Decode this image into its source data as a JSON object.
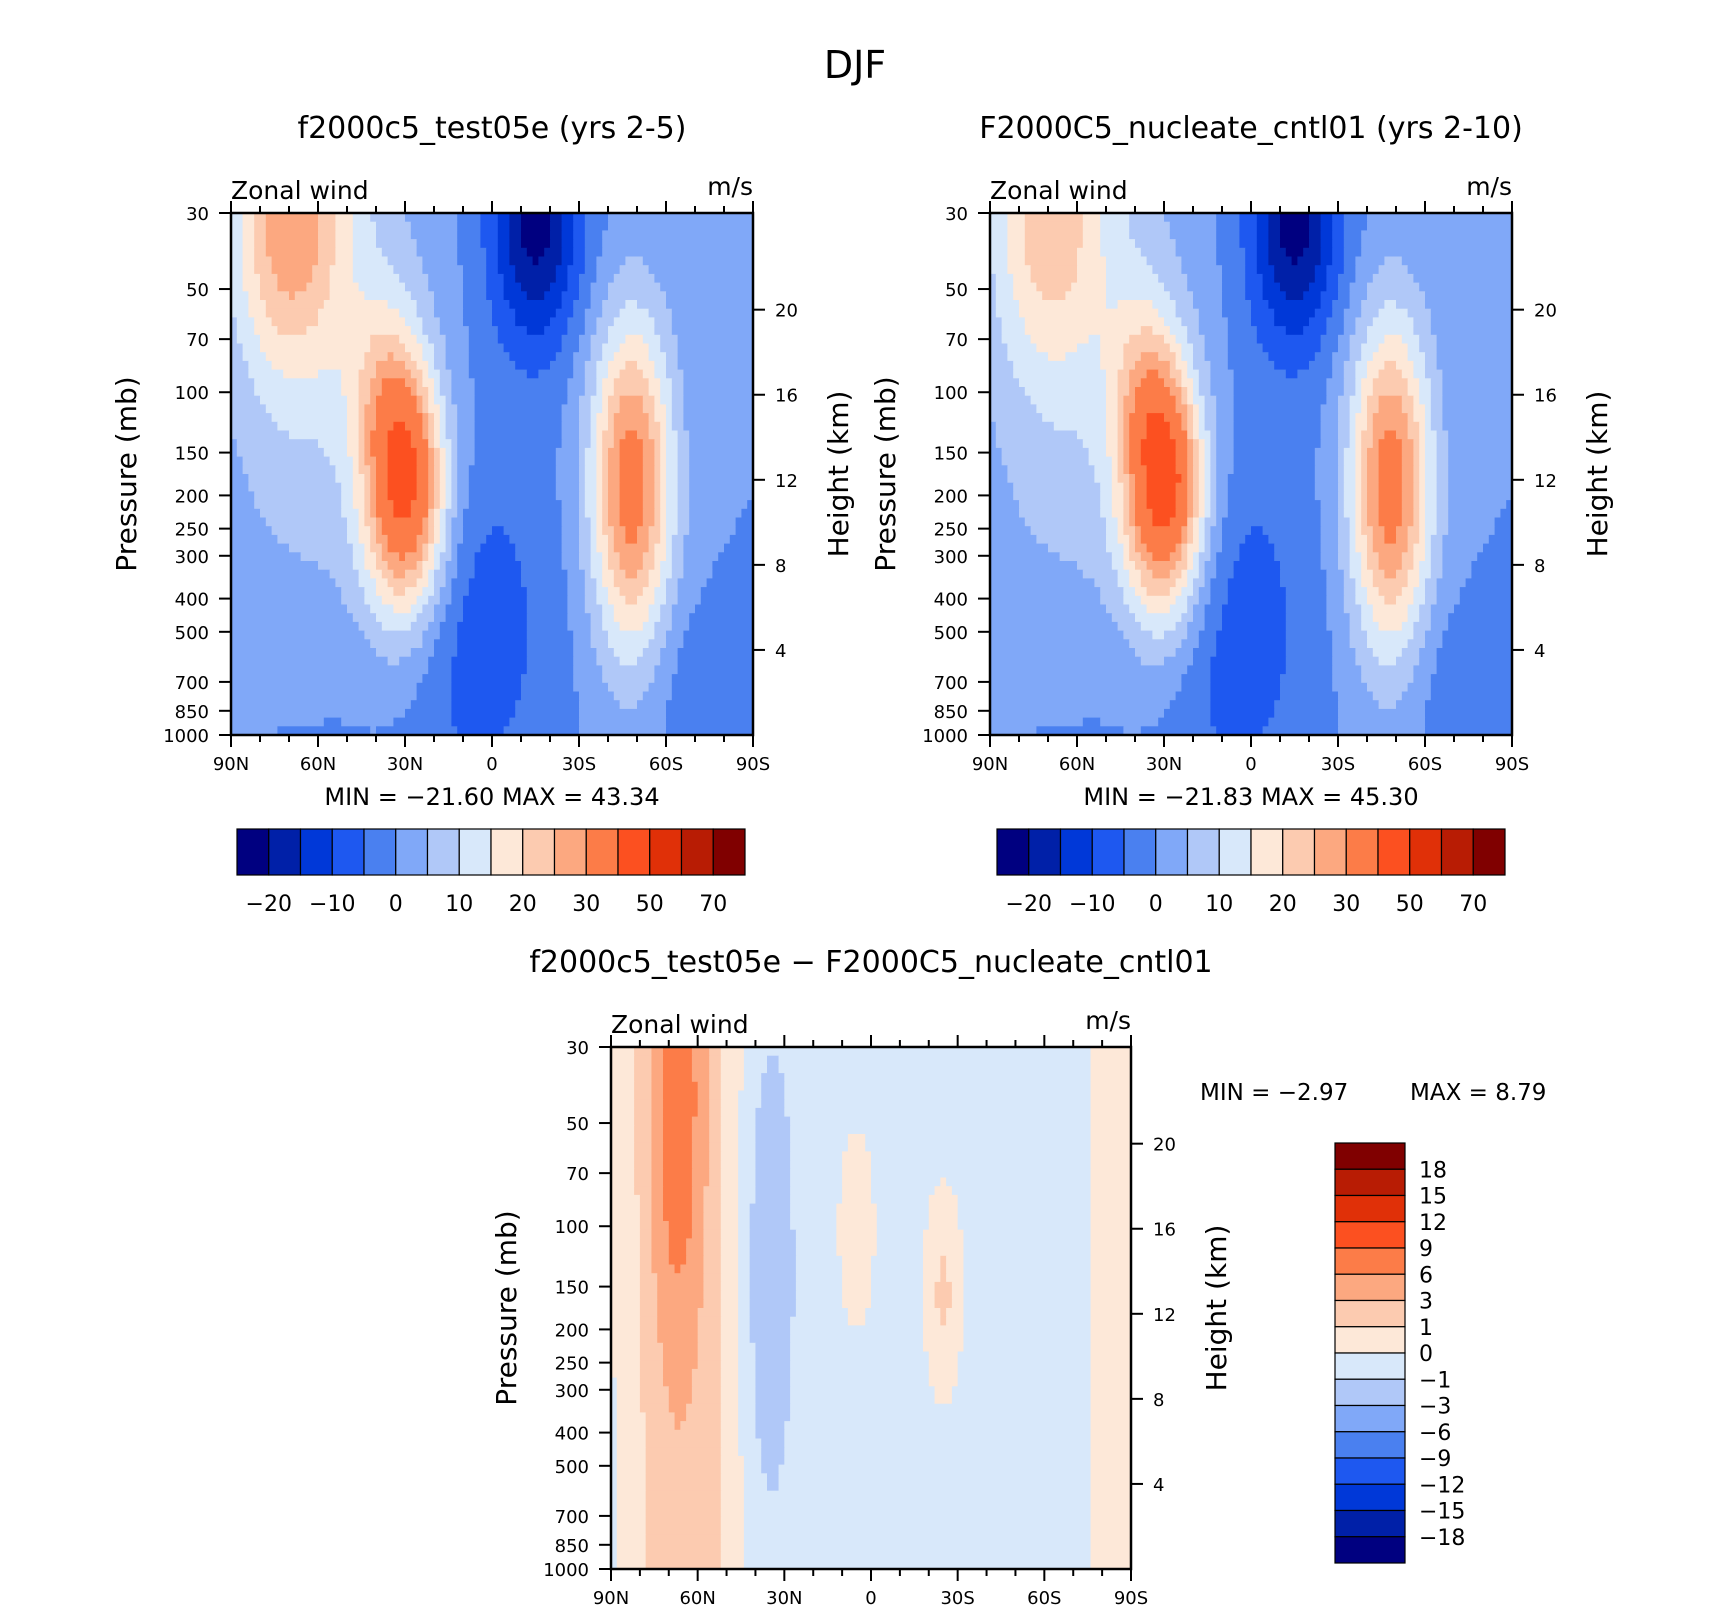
{
  "suptitle": "DJF",
  "colors": {
    "abs": [
      "#000080",
      "#0020a8",
      "#0038d8",
      "#1e58f0",
      "#4a80f0",
      "#80a8f8",
      "#b0c8f8",
      "#d8e8fa",
      "#fde8d8",
      "#fccbb0",
      "#fca880",
      "#fc7c48",
      "#fc5020",
      "#e03008",
      "#b81c04",
      "#800000"
    ],
    "diff": [
      "#000080",
      "#0020a8",
      "#0038d8",
      "#1e58f0",
      "#4a80f0",
      "#80a8f8",
      "#b0c8f8",
      "#d8e8fa",
      "#fde8d8",
      "#fccbb0",
      "#fca880",
      "#fc7c48",
      "#fc5020",
      "#e03008",
      "#b81c04",
      "#800000"
    ]
  },
  "chart_data": [
    {
      "type": "heatmap",
      "title": "f2000c5_test05e (yrs 2-5)",
      "left_label": "Zonal wind",
      "right_label": "m/s",
      "ylabel": "Pressure (mb)",
      "ylabel2": "Height (km)",
      "x_ticks": [
        "90N",
        "60N",
        "30N",
        "0",
        "30S",
        "60S",
        "90S"
      ],
      "y_ticks": [
        30,
        50,
        70,
        100,
        150,
        200,
        250,
        300,
        400,
        500,
        700,
        850,
        1000
      ],
      "y2_ticks": [
        4,
        8,
        12,
        16,
        20
      ],
      "stats": "MIN = −21.60   MAX =   43.34",
      "colorbar_labels": [
        "−20",
        "−10",
        "0",
        "10",
        "20",
        "30",
        "50",
        "70"
      ],
      "jets": {
        "nh_lat": 30,
        "nh_max": 43,
        "sh_lat": -48,
        "sh_max": 34
      }
    },
    {
      "type": "heatmap",
      "title": "F2000C5_nucleate_cntl01 (yrs 2-10)",
      "left_label": "Zonal wind",
      "right_label": "m/s",
      "ylabel": "Pressure (mb)",
      "ylabel2": "Height (km)",
      "x_ticks": [
        "90N",
        "60N",
        "30N",
        "0",
        "30S",
        "60S",
        "90S"
      ],
      "y_ticks": [
        30,
        50,
        70,
        100,
        150,
        200,
        250,
        300,
        400,
        500,
        700,
        850,
        1000
      ],
      "y2_ticks": [
        4,
        8,
        12,
        16,
        20
      ],
      "stats": "MIN = −21.83   MAX =   45.30",
      "colorbar_labels": [
        "−20",
        "−10",
        "0",
        "10",
        "20",
        "30",
        "50",
        "70"
      ],
      "jets": {
        "nh_lat": 30,
        "nh_max": 45,
        "sh_lat": -48,
        "sh_max": 34
      }
    },
    {
      "type": "heatmap",
      "title": "f2000c5_test05e − F2000C5_nucleate_cntl01",
      "left_label": "Zonal wind",
      "right_label": "m/s",
      "ylabel": "Pressure (mb)",
      "ylabel2": "Height (km)",
      "x_ticks": [
        "90N",
        "60N",
        "30N",
        "0",
        "30S",
        "60S",
        "90S"
      ],
      "y_ticks": [
        30,
        50,
        70,
        100,
        150,
        200,
        250,
        300,
        400,
        500,
        700,
        850,
        1000
      ],
      "y2_ticks": [
        4,
        8,
        12,
        16,
        20
      ],
      "stats_min": "MIN =   −2.97",
      "stats_max": "MAX =    8.79",
      "colorbar_labels": [
        "18",
        "15",
        "12",
        "9",
        "6",
        "3",
        "1",
        "0",
        "−1",
        "−3",
        "−6",
        "−9",
        "−12",
        "−15",
        "−18"
      ]
    }
  ]
}
